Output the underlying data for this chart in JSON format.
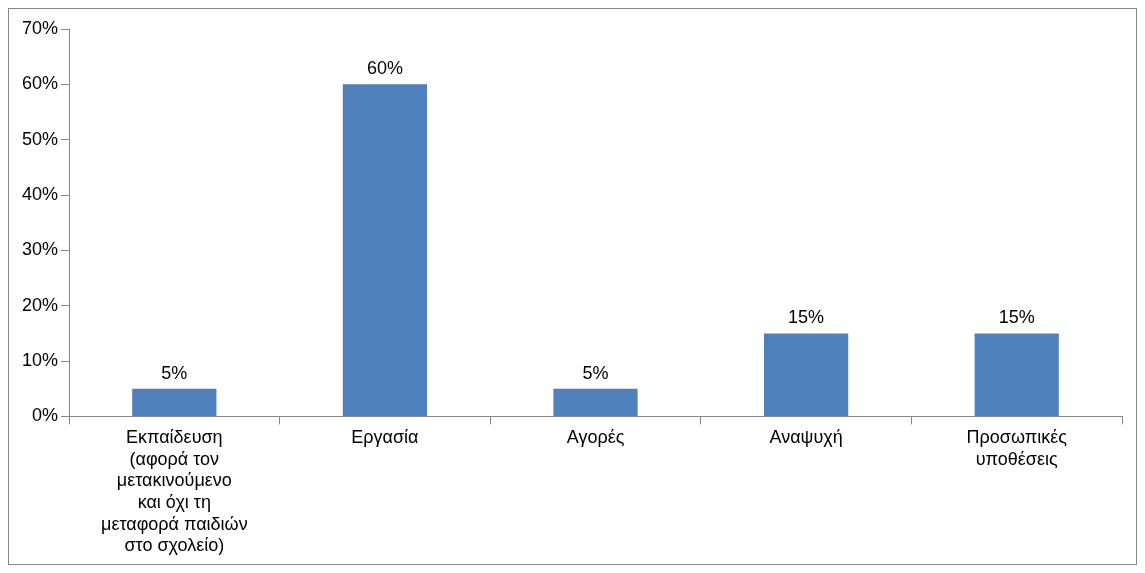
{
  "chart_data": {
    "type": "bar",
    "categories": [
      "Εκπαίδευση (αφορά τον μετακινούμενο και όχι τη μεταφορά παιδιών στο σχολείο)",
      "Εργασία",
      "Αγορές",
      "Αναψυχή",
      "Προσωπικές υποθέσεις"
    ],
    "values": [
      5,
      60,
      5,
      15,
      15
    ],
    "value_labels": [
      "5%",
      "60%",
      "5%",
      "15%",
      "15%"
    ],
    "color": "#4f81bd",
    "ylim": [
      0,
      70
    ],
    "yticks": [
      {
        "value": 0,
        "label": "0%"
      },
      {
        "value": 10,
        "label": "10%"
      },
      {
        "value": 20,
        "label": "20%"
      },
      {
        "value": 30,
        "label": "30%"
      },
      {
        "value": 40,
        "label": "40%"
      },
      {
        "value": 50,
        "label": "50%"
      },
      {
        "value": 60,
        "label": "60%"
      },
      {
        "value": 70,
        "label": "70%"
      }
    ],
    "grid": false,
    "legend": false
  }
}
